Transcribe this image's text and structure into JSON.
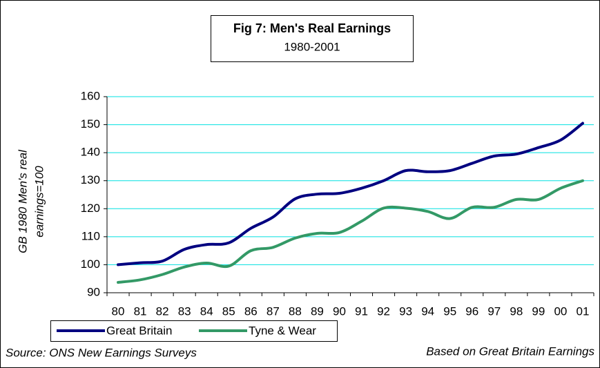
{
  "chart_data": {
    "type": "line",
    "title": "Fig 7: Men's Real Earnings",
    "subtitle": "1980-2001",
    "y_label": [
      "GB 1980 Men's real",
      "earnings=100"
    ],
    "categories": [
      "80",
      "81",
      "82",
      "83",
      "84",
      "85",
      "86",
      "87",
      "88",
      "89",
      "90",
      "91",
      "92",
      "93",
      "94",
      "95",
      "96",
      "97",
      "98",
      "99",
      "00",
      "01"
    ],
    "series": [
      {
        "name": "Great Britain",
        "color": "#000080",
        "values": [
          100,
          100.7,
          101.3,
          105.5,
          107.2,
          107.8,
          113,
          117,
          123.5,
          125.2,
          125.5,
          127.3,
          130,
          133.6,
          133.2,
          133.6,
          136.2,
          138.8,
          139.5,
          141.8,
          144.5,
          150.5
        ]
      },
      {
        "name": "Tyne & Wear",
        "color": "#339966",
        "values": [
          93.7,
          94.6,
          96.5,
          99.2,
          100.6,
          99.5,
          105,
          106.2,
          109.5,
          111.2,
          111.5,
          115.5,
          120.2,
          120.2,
          119,
          116.5,
          120.5,
          120.5,
          123.3,
          123.3,
          127.3,
          130
        ]
      }
    ],
    "ylim": [
      90,
      160
    ],
    "yticks": [
      90,
      100,
      110,
      120,
      130,
      140,
      150,
      160
    ],
    "grid": true,
    "grid_color": "#00e0e0",
    "notes": {
      "source": "Source: ONS New Earnings Surveys",
      "basis": "Based on Great Britain Earnings"
    }
  }
}
